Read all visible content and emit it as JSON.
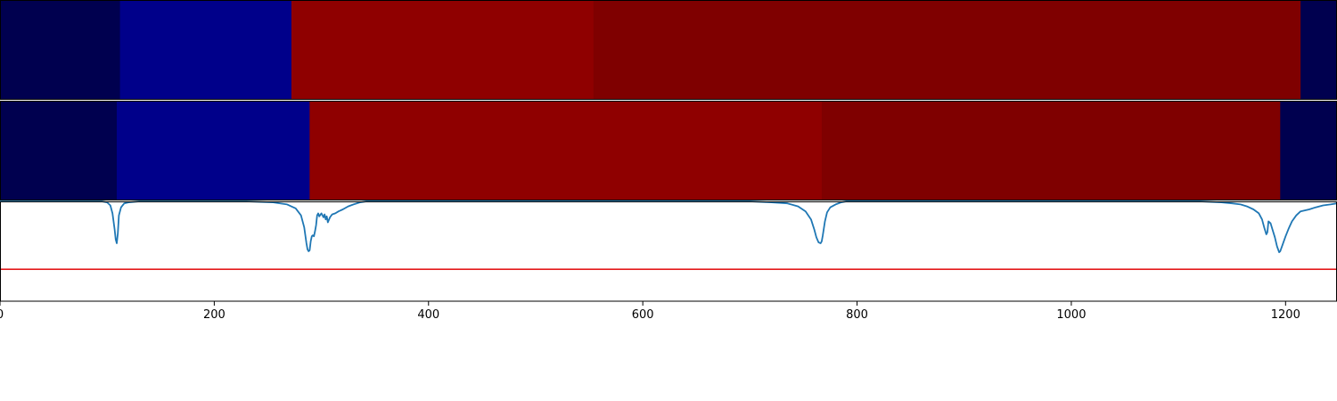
{
  "chart_data": {
    "type": "heatmap",
    "title": "",
    "xlabel": "",
    "ylabel": "",
    "xlim": [
      0,
      1248
    ],
    "grid": false,
    "legend": "none",
    "x_ticks": [
      0,
      200,
      400,
      600,
      800,
      1000,
      1200
    ],
    "x_tick_labels": [
      "0",
      "200",
      "400",
      "600",
      "800",
      "1000",
      "1200"
    ],
    "segment_rows": [
      {
        "segments": [
          {
            "start": 0,
            "end": 112,
            "color": "#00004f"
          },
          {
            "start": 112,
            "end": 272,
            "color": "#00008a"
          },
          {
            "start": 272,
            "end": 554,
            "color": "#8f0000"
          },
          {
            "start": 554,
            "end": 1214,
            "color": "#7f0000"
          },
          {
            "start": 1214,
            "end": 1248,
            "color": "#00004f"
          }
        ]
      },
      {
        "segments": [
          {
            "start": 0,
            "end": 109,
            "color": "#00004f"
          },
          {
            "start": 109,
            "end": 289,
            "color": "#00008a"
          },
          {
            "start": 289,
            "end": 767,
            "color": "#8f0000"
          },
          {
            "start": 767,
            "end": 1195,
            "color": "#7f0000"
          },
          {
            "start": 1195,
            "end": 1248,
            "color": "#00004f"
          }
        ]
      }
    ],
    "signal": {
      "color": "#1f77b4",
      "ylim": [
        0,
        1
      ],
      "points": [
        [
          0,
          0.0
        ],
        [
          95,
          0.0
        ],
        [
          100,
          0.01
        ],
        [
          103,
          0.04
        ],
        [
          105,
          0.12
        ],
        [
          107,
          0.28
        ],
        [
          108,
          0.38
        ],
        [
          109,
          0.42
        ],
        [
          110,
          0.32
        ],
        [
          111,
          0.14
        ],
        [
          113,
          0.06
        ],
        [
          116,
          0.02
        ],
        [
          120,
          0.01
        ],
        [
          130,
          0.0
        ],
        [
          230,
          0.0
        ],
        [
          255,
          0.01
        ],
        [
          268,
          0.03
        ],
        [
          276,
          0.07
        ],
        [
          281,
          0.14
        ],
        [
          284,
          0.26
        ],
        [
          286,
          0.42
        ],
        [
          287,
          0.48
        ],
        [
          288,
          0.5
        ],
        [
          289,
          0.49
        ],
        [
          290,
          0.4
        ],
        [
          291,
          0.35
        ],
        [
          292,
          0.34
        ],
        [
          293,
          0.35
        ],
        [
          294,
          0.3
        ],
        [
          295,
          0.24
        ],
        [
          296,
          0.14
        ],
        [
          297,
          0.12
        ],
        [
          298,
          0.15
        ],
        [
          300,
          0.12
        ],
        [
          302,
          0.16
        ],
        [
          303,
          0.13
        ],
        [
          304,
          0.18
        ],
        [
          305,
          0.15
        ],
        [
          306,
          0.21
        ],
        [
          308,
          0.16
        ],
        [
          310,
          0.13
        ],
        [
          313,
          0.12
        ],
        [
          316,
          0.1
        ],
        [
          320,
          0.08
        ],
        [
          325,
          0.05
        ],
        [
          330,
          0.03
        ],
        [
          336,
          0.01
        ],
        [
          342,
          0.0
        ],
        [
          700,
          0.0
        ],
        [
          720,
          0.01
        ],
        [
          735,
          0.02
        ],
        [
          745,
          0.05
        ],
        [
          752,
          0.1
        ],
        [
          757,
          0.18
        ],
        [
          760,
          0.28
        ],
        [
          762,
          0.36
        ],
        [
          764,
          0.41
        ],
        [
          766,
          0.42
        ],
        [
          767,
          0.4
        ],
        [
          768,
          0.34
        ],
        [
          770,
          0.2
        ],
        [
          772,
          0.11
        ],
        [
          775,
          0.06
        ],
        [
          780,
          0.03
        ],
        [
          785,
          0.01
        ],
        [
          790,
          0.0
        ],
        [
          1100,
          0.0
        ],
        [
          1120,
          0.0
        ],
        [
          1140,
          0.01
        ],
        [
          1150,
          0.02
        ],
        [
          1158,
          0.03
        ],
        [
          1164,
          0.05
        ],
        [
          1170,
          0.08
        ],
        [
          1175,
          0.12
        ],
        [
          1178,
          0.18
        ],
        [
          1180,
          0.26
        ],
        [
          1182,
          0.33
        ],
        [
          1183,
          0.31
        ],
        [
          1184,
          0.2
        ],
        [
          1186,
          0.22
        ],
        [
          1188,
          0.29
        ],
        [
          1190,
          0.36
        ],
        [
          1192,
          0.45
        ],
        [
          1194,
          0.51
        ],
        [
          1195,
          0.5
        ],
        [
          1197,
          0.44
        ],
        [
          1200,
          0.35
        ],
        [
          1203,
          0.27
        ],
        [
          1206,
          0.2
        ],
        [
          1210,
          0.14
        ],
        [
          1214,
          0.1
        ],
        [
          1218,
          0.09
        ],
        [
          1222,
          0.08
        ],
        [
          1228,
          0.06
        ],
        [
          1235,
          0.04
        ],
        [
          1242,
          0.03
        ],
        [
          1248,
          0.02
        ]
      ]
    },
    "threshold": {
      "value": 0.68,
      "color": "#e41a1c"
    }
  }
}
